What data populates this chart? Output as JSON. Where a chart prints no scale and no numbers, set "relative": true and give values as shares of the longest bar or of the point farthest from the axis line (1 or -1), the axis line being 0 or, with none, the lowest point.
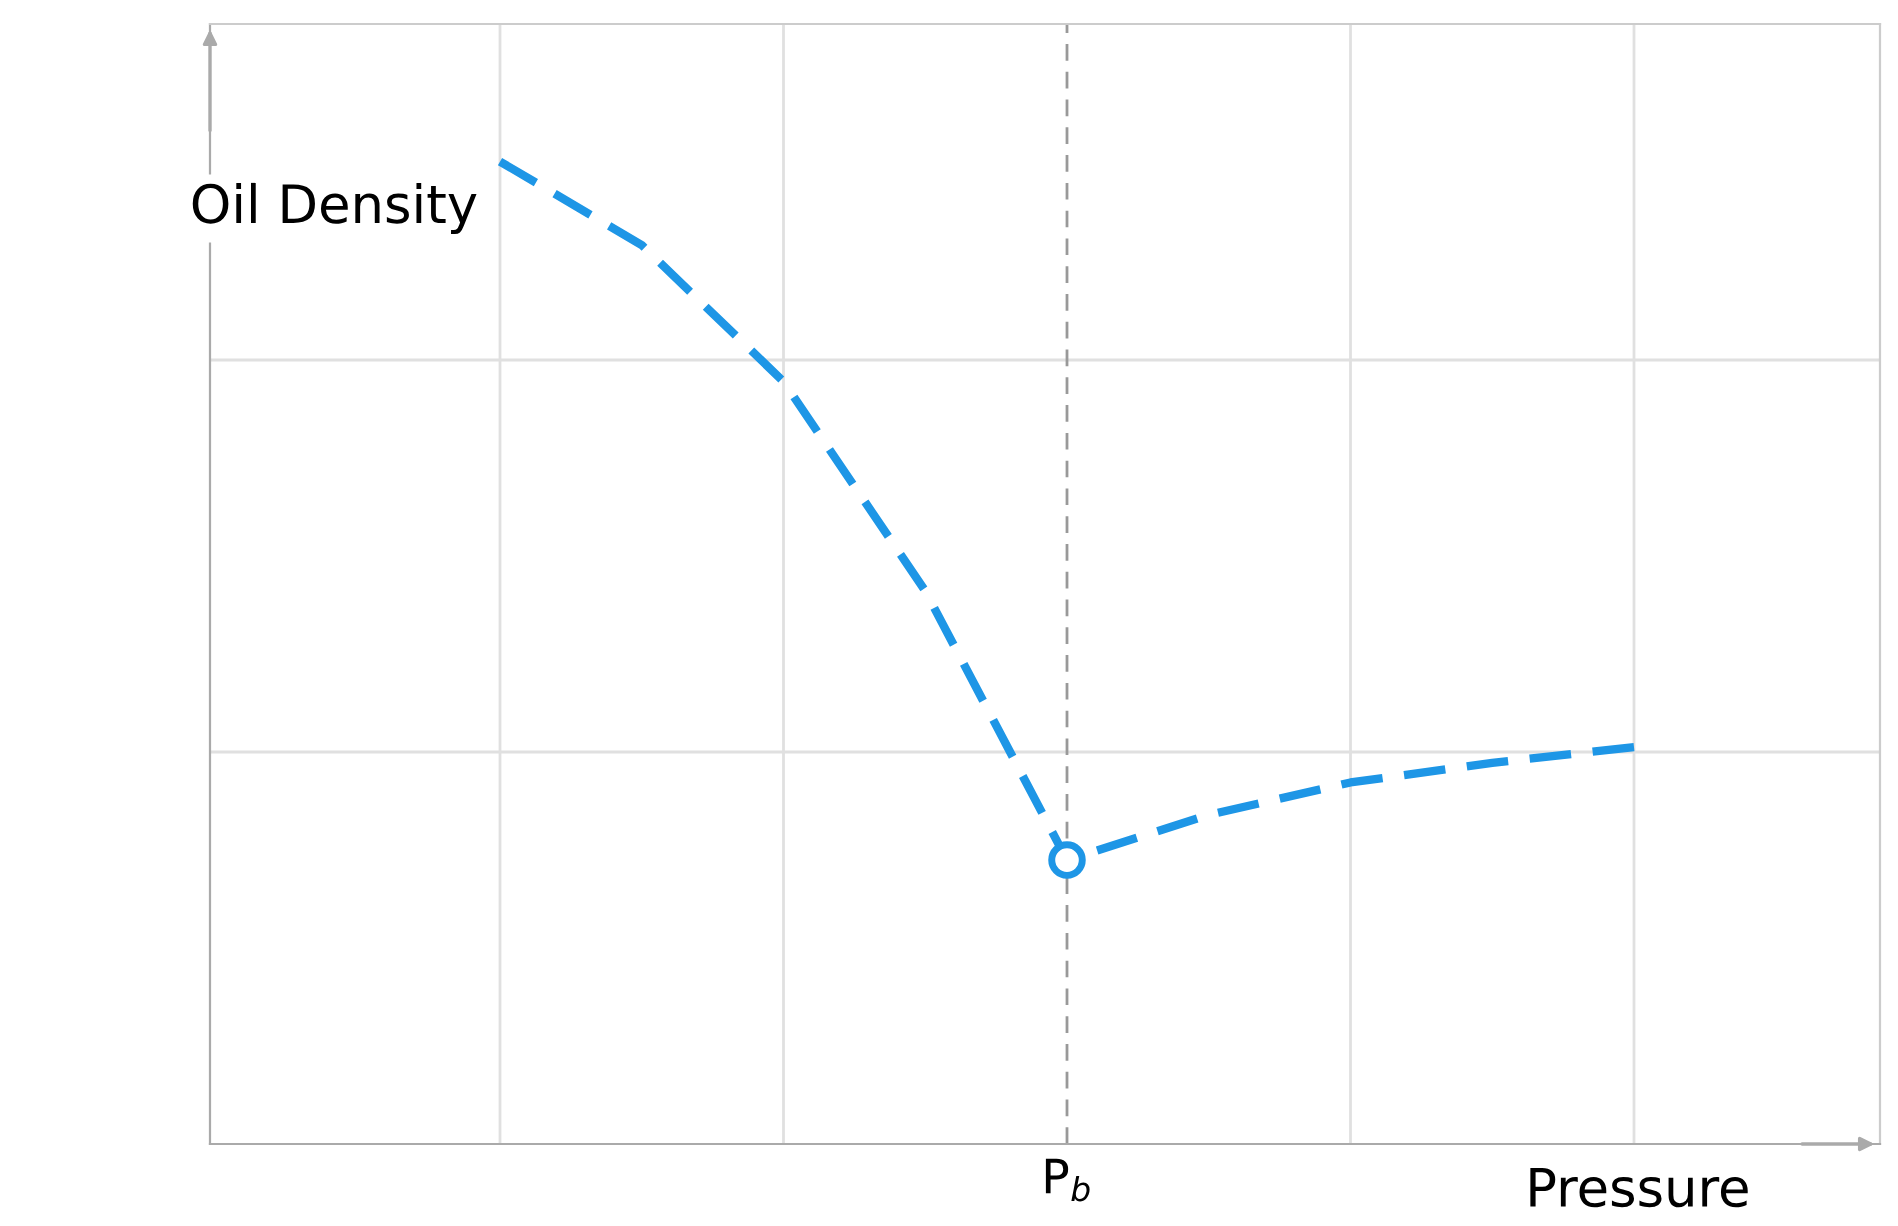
{
  "chart_data": {
    "type": "line",
    "relative": true,
    "xlabel": "Pressure",
    "ylabel": "Oil Density",
    "categories": [
      null,
      null,
      null,
      null,
      null,
      null,
      null,
      null,
      null
    ],
    "series": [
      {
        "color": "#1e96e6",
        "line_style": "dashed",
        "values": [
          1,
          0.915,
          0.776,
          0.563,
          0.289,
          0.335,
          0.368,
          0.388,
          0.404
        ]
      }
    ],
    "annotations": [
      "P$_{b}$"
    ],
    "grid": true,
    "legend": false
  }
}
